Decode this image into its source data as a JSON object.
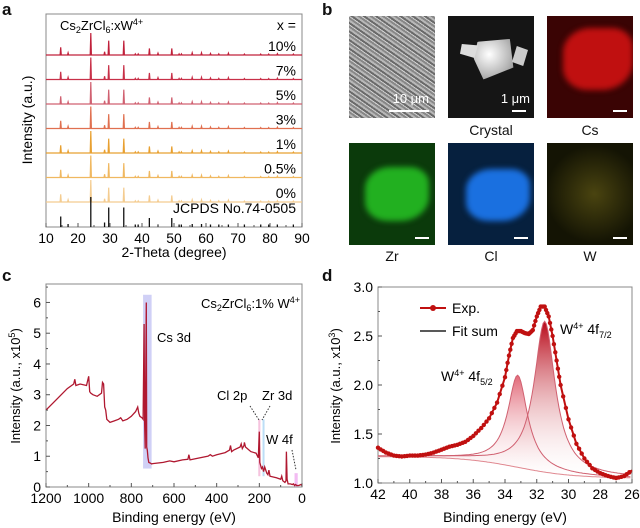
{
  "panels": {
    "a": {
      "letter": "a"
    },
    "b": {
      "letter": "b"
    },
    "c": {
      "letter": "c"
    },
    "d": {
      "letter": "d"
    }
  },
  "micrographs": {
    "sem": {
      "scale_label": "10 μm",
      "caption": ""
    },
    "crystal": {
      "scale_label": "1 μm",
      "caption": "Crystal"
    },
    "maps": [
      {
        "element": "Cs",
        "color": "#d01010"
      },
      {
        "element": "Zr",
        "color": "#22c020"
      },
      {
        "element": "Cl",
        "color": "#1a6fe0"
      },
      {
        "element": "W",
        "color": "#c8c020"
      }
    ]
  },
  "chart_data": [
    {
      "id": "a",
      "type": "line",
      "title": "Cs2ZrCl6:xW4+",
      "title_parts": {
        "base": "Cs",
        "s1": "2",
        "mid": "ZrCl",
        "s2": "6",
        "tail": ":xW",
        "sup": "4+"
      },
      "legend_header": "x =",
      "xlabel": "2-Theta (degree)",
      "ylabel": "Intensity (a.u.)",
      "xlim": [
        10,
        90
      ],
      "xticks": [
        10,
        20,
        30,
        40,
        50,
        60,
        70,
        80,
        90
      ],
      "peaks_2theta": [
        14.6,
        16.9,
        24.0,
        28.3,
        29.6,
        34.3,
        37.9,
        38.8,
        42.3,
        45.0,
        49.3,
        51.6,
        52.3,
        55.7,
        58.6,
        61.4,
        64.0,
        67.0,
        72.0,
        77.1,
        79.6,
        82.3,
        87.3
      ],
      "peak_rel_intensity": [
        0.35,
        0.1,
        1.0,
        0.15,
        0.65,
        0.65,
        0.05,
        0.05,
        0.3,
        0.08,
        0.3,
        0.05,
        0.05,
        0.1,
        0.1,
        0.07,
        0.05,
        0.08,
        0.04,
        0.04,
        0.04,
        0.06,
        0.04
      ],
      "series": [
        {
          "name": "10%",
          "color": "#c0203a"
        },
        {
          "name": "7%",
          "color": "#c83048"
        },
        {
          "name": "5%",
          "color": "#d06070"
        },
        {
          "name": "3%",
          "color": "#e07050"
        },
        {
          "name": "1%",
          "color": "#e8a030"
        },
        {
          "name": "0.5%",
          "color": "#f0b860"
        },
        {
          "name": "0%",
          "color": "#f4cc90"
        }
      ],
      "reference": {
        "name": "JCPDS No.74-0505",
        "color": "#111111"
      }
    },
    {
      "id": "c",
      "type": "line",
      "title": "Cs2ZrCl6:1% W4+",
      "title_parts": {
        "base": "Cs",
        "s1": "2",
        "mid": "ZrCl",
        "s2": "6",
        "tail": ":1% W",
        "sup": "4+"
      },
      "xlabel": "Binding energy (eV)",
      "ylabel": "Intensity  (a.u., x10",
      "ylabel_sup": "5",
      "xlim": [
        1200,
        0
      ],
      "ylim": [
        0,
        6.3
      ],
      "xticks": [
        1200,
        1000,
        800,
        600,
        400,
        200,
        0
      ],
      "yticks": [
        0,
        1,
        2,
        3,
        4,
        5,
        6
      ],
      "color": "#b01830",
      "x": [
        1200,
        1150,
        1100,
        1080,
        1070,
        1065,
        1060,
        1040,
        1010,
        1000,
        995,
        990,
        980,
        960,
        940,
        935,
        930,
        925,
        920,
        915,
        900,
        880,
        860,
        850,
        840,
        820,
        800,
        780,
        770,
        765,
        760,
        750,
        745,
        740,
        738,
        735,
        730,
        728,
        725,
        722,
        718,
        712,
        705,
        700,
        650,
        620,
        600,
        560,
        535,
        530,
        525,
        500,
        440,
        430,
        420,
        400,
        360,
        340,
        335,
        330,
        320,
        290,
        285,
        280,
        272,
        270,
        265,
        240,
        215,
        205,
        200,
        198,
        196,
        190,
        185,
        182,
        180,
        175,
        165,
        160,
        155,
        150,
        120,
        100,
        95,
        90,
        80,
        75,
        73,
        70,
        65,
        55,
        45,
        40,
        35,
        30,
        25,
        15,
        5,
        0
      ],
      "y": [
        2.5,
        2.85,
        3.2,
        3.3,
        3.35,
        3.5,
        3.3,
        3.35,
        3.3,
        3.6,
        3.1,
        3.05,
        3.0,
        2.95,
        3.05,
        3.4,
        3.35,
        2.6,
        2.5,
        2.2,
        2.1,
        2.15,
        2.2,
        2.25,
        2.15,
        2.2,
        2.3,
        2.45,
        2.6,
        2.4,
        2.3,
        2.25,
        2.2,
        5.3,
        2.1,
        1.25,
        6.0,
        1.3,
        1.2,
        0.95,
        0.8,
        0.78,
        0.75,
        0.76,
        0.8,
        0.85,
        0.82,
        0.88,
        0.9,
        1.05,
        0.88,
        0.92,
        1.0,
        1.05,
        1.0,
        1.05,
        1.12,
        1.2,
        1.35,
        1.15,
        1.2,
        1.3,
        1.4,
        1.25,
        1.35,
        1.45,
        1.3,
        1.15,
        1.1,
        0.95,
        1.8,
        0.8,
        0.75,
        0.6,
        0.65,
        0.55,
        0.5,
        0.65,
        0.45,
        0.4,
        0.55,
        0.35,
        0.3,
        0.25,
        0.35,
        0.2,
        0.15,
        0.2,
        1.15,
        0.25,
        0.1,
        0.1,
        0.08,
        0.1,
        0.05,
        0.08,
        0.05,
        0.05,
        0.08,
        0.05
      ],
      "highlights": [
        {
          "label": "Cs 3d",
          "range": [
            745,
            705
          ],
          "ymax": 6.25,
          "ymin": 0.6,
          "color": "#c8c8f4"
        },
        {
          "label": "Cl 2p",
          "range": [
            205,
            195
          ],
          "ymax": 2.2,
          "ymin": 0.35,
          "color": "#f4b8d8"
        },
        {
          "label": "Zr 3d",
          "range": [
            185,
            177
          ],
          "ymax": 2.2,
          "ymin": 0.35,
          "color": "#b0d8f4"
        },
        {
          "label": "W 4f",
          "range": [
            35,
            20
          ],
          "ymax": 0.45,
          "ymin": 0.0,
          "color": "#f0b0f0"
        }
      ],
      "annotations": [
        "Cs 3d",
        "Cl 2p",
        "Zr 3d",
        "W 4f"
      ]
    },
    {
      "id": "d",
      "type": "line",
      "xlabel": "Binding energy (eV)",
      "ylabel": "Intensity  (a.u., x10",
      "ylabel_sup": "3",
      "xlim": [
        42,
        26
      ],
      "ylim": [
        1.0,
        3.0
      ],
      "xticks": [
        42,
        40,
        38,
        36,
        34,
        32,
        30,
        28,
        26
      ],
      "yticks": [
        1.0,
        1.5,
        2.0,
        2.5,
        3.0
      ],
      "yticklabels": [
        "1.0",
        "1.5",
        "2.0",
        "2.5",
        "3.0"
      ],
      "legend": [
        {
          "name": "Exp.",
          "style": "line-marker",
          "color": "#c01010"
        },
        {
          "name": "Fit sum",
          "style": "line",
          "color": "#222222"
        }
      ],
      "legend_position": "top-left",
      "exp_x": [
        42.0,
        41.5,
        41.0,
        40.5,
        40.0,
        39.5,
        39.0,
        38.5,
        38.0,
        37.5,
        37.0,
        36.5,
        36.0,
        35.5,
        35.0,
        34.5,
        34.0,
        33.75,
        33.5,
        33.25,
        33.0,
        32.75,
        32.5,
        32.25,
        32.0,
        31.75,
        31.5,
        31.25,
        31.0,
        30.75,
        30.5,
        30.0,
        29.5,
        29.0,
        28.5,
        28.0,
        27.5,
        27.0,
        26.5,
        26.0
      ],
      "exp_y": [
        1.36,
        1.31,
        1.28,
        1.27,
        1.28,
        1.28,
        1.29,
        1.31,
        1.34,
        1.37,
        1.39,
        1.42,
        1.48,
        1.56,
        1.66,
        1.82,
        2.08,
        2.3,
        2.48,
        2.55,
        2.55,
        2.53,
        2.52,
        2.56,
        2.7,
        2.8,
        2.8,
        2.7,
        2.5,
        2.25,
        2.0,
        1.65,
        1.4,
        1.25,
        1.15,
        1.1,
        1.07,
        1.05,
        1.07,
        1.13
      ],
      "components": [
        {
          "name": "W4+ 4f5/2",
          "center": 33.2,
          "height": 2.1,
          "fill": "#e06070"
        },
        {
          "name": "W4+ 4f7/2",
          "center": 31.5,
          "height": 2.65,
          "fill": "#c01020"
        }
      ],
      "background": {
        "start": 1.27,
        "end": 1.05
      },
      "annotations": [
        {
          "base": "W",
          "sup": "4+",
          "mid": " 4f",
          "sub": "5/2"
        },
        {
          "base": "W",
          "sup": "4+",
          "mid": " 4f",
          "sub": "7/2"
        }
      ]
    }
  ]
}
